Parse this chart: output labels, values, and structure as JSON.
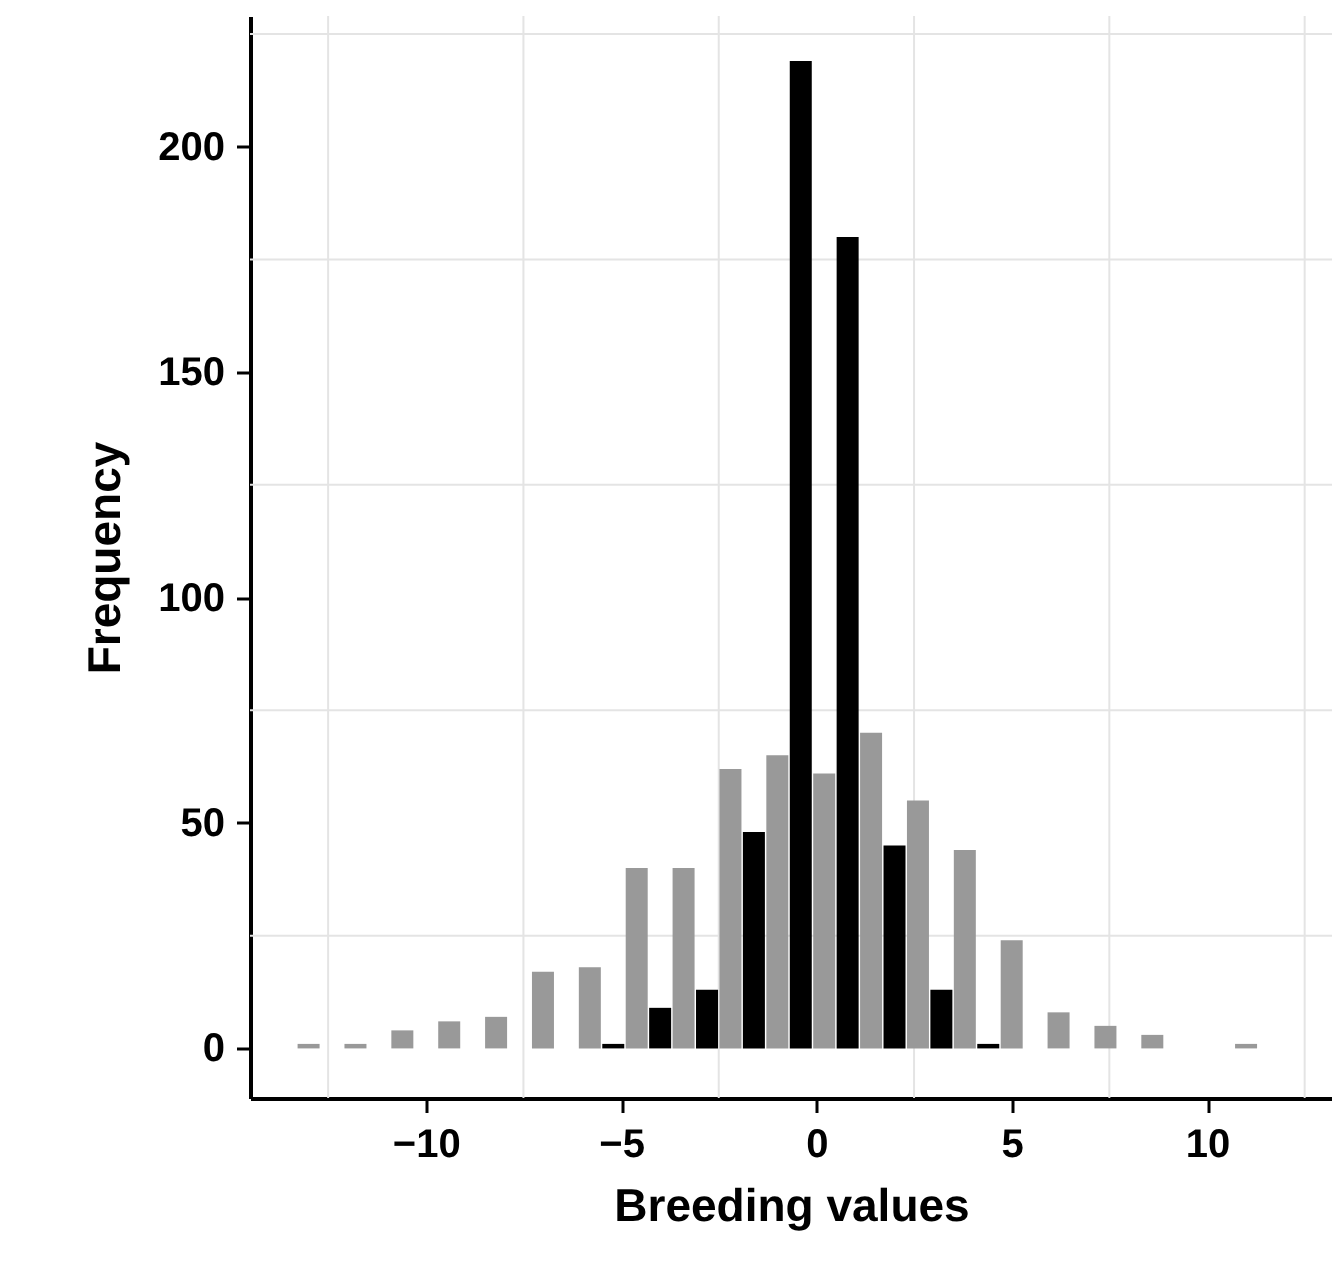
{
  "chart_data": {
    "type": "bar",
    "xlabel": "Breeding values",
    "ylabel": "Frequency",
    "series": [
      {
        "color": "#999999",
        "x": [
          -13.0,
          -11.8,
          -10.6,
          -9.4,
          -8.2,
          -7.0,
          -5.8,
          -4.6,
          -3.4,
          -2.2,
          -1.0,
          0.2,
          1.4,
          2.6,
          3.8,
          5.0,
          6.2,
          7.4,
          8.6,
          11.0
        ],
        "values": [
          1,
          1,
          4,
          6,
          7,
          17,
          18,
          40,
          40,
          62,
          65,
          61,
          70,
          55,
          44,
          24,
          8,
          5,
          3,
          1
        ]
      },
      {
        "color": "#000000",
        "x": [
          -5.2,
          -4.0,
          -2.8,
          -1.6,
          -0.4,
          0.8,
          2.0,
          3.2,
          4.4
        ],
        "values": [
          1,
          9,
          13,
          48,
          219,
          180,
          45,
          13,
          1
        ]
      }
    ],
    "xlim": [
      -14.5,
      13.2
    ],
    "ylim": [
      -11,
      229
    ],
    "xticks": [
      {
        "value": -10,
        "label": "−10"
      },
      {
        "value": -5,
        "label": "−5"
      },
      0,
      5,
      10
    ],
    "yticks": [
      0,
      50,
      100,
      150,
      200
    ],
    "grid": true
  }
}
